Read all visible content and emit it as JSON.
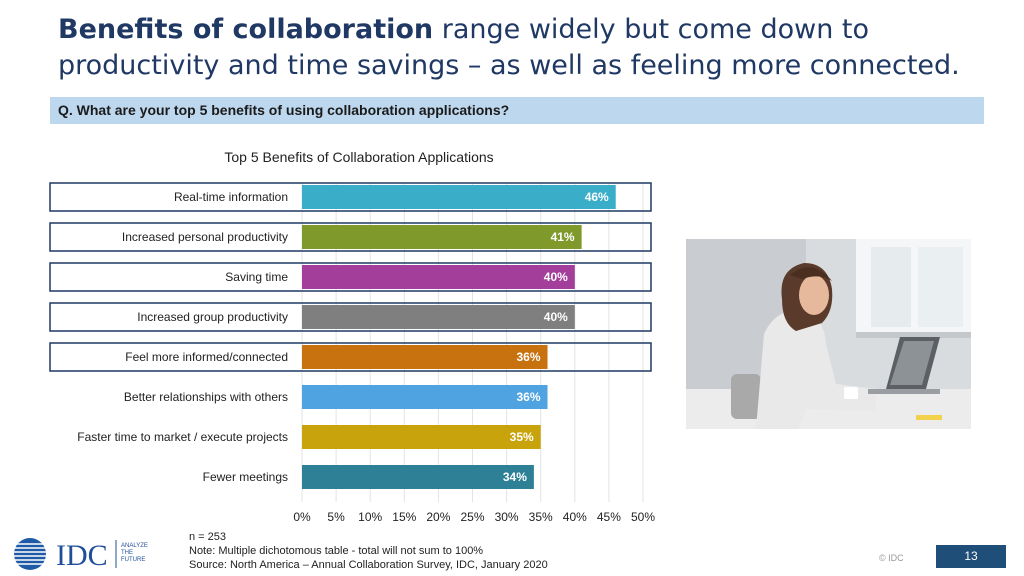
{
  "slide": {
    "title_bold": "Benefits of collaboration",
    "title_rest": " range widely but come down to productivity and time savings – as well as feeling more connected.",
    "question": "Q. What are your top 5 benefits of using collaboration applications?",
    "notes": [
      "n = 253",
      "Note: Multiple dichotomous table - total will not sum to 100%",
      "Source: North America – Annual Collaboration Survey, IDC, January 2020"
    ],
    "logo_text": "IDC",
    "logo_tagline": [
      "ANALYZE",
      "THE",
      "FUTURE"
    ],
    "copyright": "© IDC",
    "page_number": "13"
  },
  "chart_data": {
    "type": "bar",
    "orientation": "horizontal",
    "title": "Top 5 Benefits of Collaboration Applications",
    "categories": [
      "Real-time information",
      "Increased personal productivity",
      "Saving time",
      "Increased group productivity",
      "Feel more informed/connected",
      "Better relationships with others",
      "Faster time to market / execute projects",
      "Fewer meetings"
    ],
    "values": [
      46,
      41,
      40,
      40,
      36,
      36,
      35,
      34
    ],
    "value_labels": [
      "46%",
      "41%",
      "40%",
      "40%",
      "36%",
      "36%",
      "35%",
      "34%"
    ],
    "colors": [
      "#3aaec8",
      "#7f9a2b",
      "#a33e9b",
      "#7f7f7f",
      "#c7720f",
      "#4fa3e0",
      "#c9a30c",
      "#2e8097"
    ],
    "highlighted_top5": [
      true,
      true,
      true,
      true,
      true,
      false,
      false,
      false
    ],
    "highlight_border_color": "#1f3864",
    "xlim": [
      0,
      50
    ],
    "xticks": [
      "0%",
      "5%",
      "10%",
      "15%",
      "20%",
      "25%",
      "30%",
      "35%",
      "40%",
      "45%",
      "50%"
    ],
    "grid": true
  }
}
